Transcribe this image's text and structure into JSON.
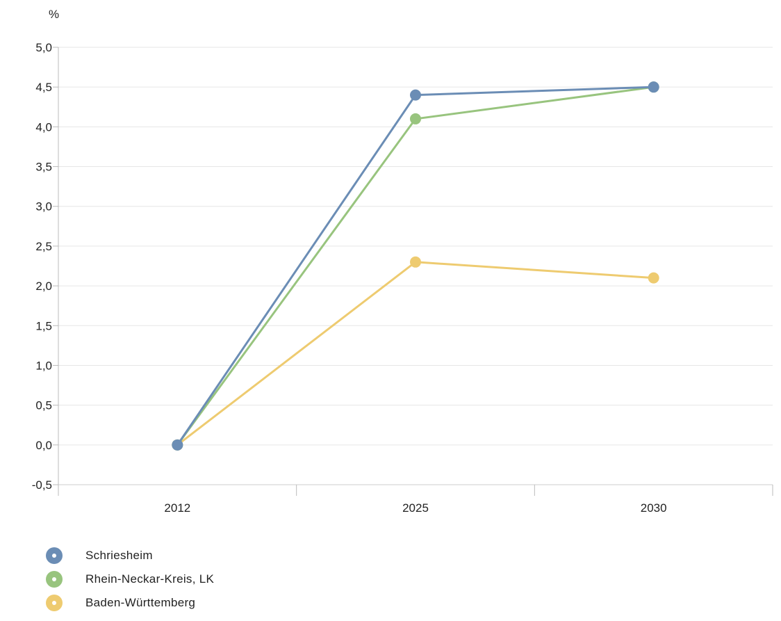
{
  "chart_data": {
    "type": "line",
    "unit_label": "%",
    "categories": [
      "2012",
      "2025",
      "2030"
    ],
    "y_ticks": [
      "5,0",
      "4,5",
      "4,0",
      "3,5",
      "3,0",
      "2,5",
      "2,0",
      "1,5",
      "1,0",
      "0,5",
      "0,0",
      "-0,5"
    ],
    "ylim": [
      -0.5,
      5.0
    ],
    "grid": true,
    "legend_position": "bottom-left",
    "series": [
      {
        "name": "Schriesheim",
        "color": "#6b8db5",
        "values": [
          0.0,
          4.4,
          4.5
        ]
      },
      {
        "name": "Rhein-Neckar-Kreis, LK",
        "color": "#98c47e",
        "values": [
          0.0,
          4.1,
          4.5
        ]
      },
      {
        "name": "Baden-Württemberg",
        "color": "#eecb70",
        "values": [
          0.0,
          2.3,
          2.1
        ]
      }
    ]
  }
}
